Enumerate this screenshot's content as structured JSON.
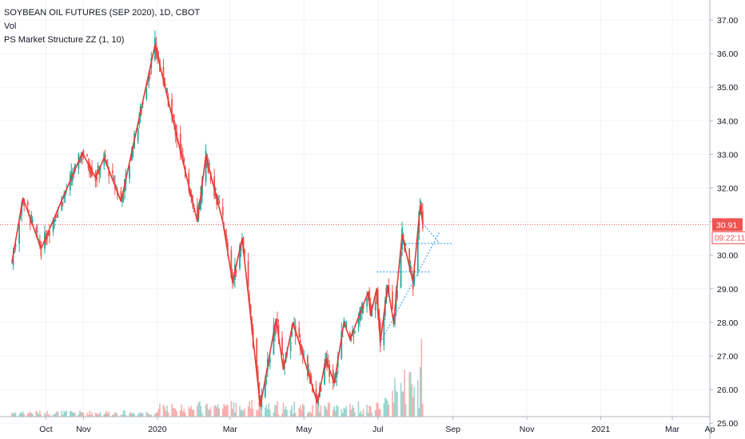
{
  "legend": {
    "symbol": "SOYBEAN OIL FUTURES (SEP 2020), 1D, CBOT",
    "vol": "Vol",
    "indicator": "PS Market Structure ZZ (1, 10)"
  },
  "colors": {
    "up": "#26a69a",
    "down": "#ef5350",
    "zigzag": "#e53935",
    "projection": "#2196f3",
    "grid": "#f0f3fa"
  },
  "chart_data": {
    "type": "candlestick",
    "x_ticks": [
      "Oct",
      "Nov",
      "2020",
      "Mar",
      "May",
      "Jul",
      "Sep",
      "Nov",
      "2021",
      "Mar",
      "Ap"
    ],
    "y_ticks": [
      "25.00",
      "26.00",
      "27.00",
      "28.00",
      "29.00",
      "30.00",
      "31.00",
      "32.00",
      "33.00",
      "34.00",
      "35.00",
      "36.00",
      "37.00"
    ],
    "ylim": [
      24.6,
      37.5
    ],
    "last_price": "30.91",
    "countdown": "09:22:11",
    "zigzag_pivots": [
      {
        "date": "2019-09-03",
        "price": 29.8
      },
      {
        "date": "2019-09-12",
        "price": 31.7
      },
      {
        "date": "2019-09-27",
        "price": 30.2
      },
      {
        "date": "2019-10-31",
        "price": 33.05
      },
      {
        "date": "2019-11-11",
        "price": 32.3
      },
      {
        "date": "2019-11-18",
        "price": 32.9
      },
      {
        "date": "2019-12-02",
        "price": 31.6
      },
      {
        "date": "2019-12-30",
        "price": 36.25
      },
      {
        "date": "2020-02-03",
        "price": 31.0
      },
      {
        "date": "2020-02-10",
        "price": 32.95
      },
      {
        "date": "2020-02-24",
        "price": 31.0
      },
      {
        "date": "2020-03-03",
        "price": 29.2
      },
      {
        "date": "2020-03-11",
        "price": 30.5
      },
      {
        "date": "2020-03-26",
        "price": 25.5
      },
      {
        "date": "2020-04-08",
        "price": 28.1
      },
      {
        "date": "2020-04-14",
        "price": 26.6
      },
      {
        "date": "2020-04-22",
        "price": 28.0
      },
      {
        "date": "2020-05-12",
        "price": 25.6
      },
      {
        "date": "2020-05-19",
        "price": 26.9
      },
      {
        "date": "2020-05-26",
        "price": 26.2
      },
      {
        "date": "2020-06-03",
        "price": 28.0
      },
      {
        "date": "2020-06-08",
        "price": 27.5
      },
      {
        "date": "2020-06-23",
        "price": 28.9
      },
      {
        "date": "2020-06-25",
        "price": 28.2
      },
      {
        "date": "2020-06-30",
        "price": 29.0
      },
      {
        "date": "2020-07-03",
        "price": 27.4
      },
      {
        "date": "2020-07-09",
        "price": 29.1
      },
      {
        "date": "2020-07-14",
        "price": 28.0
      },
      {
        "date": "2020-07-21",
        "price": 30.6
      },
      {
        "date": "2020-07-30",
        "price": 29.2
      },
      {
        "date": "2020-08-05",
        "price": 31.5
      },
      {
        "date": "2020-08-07",
        "price": 30.95
      }
    ],
    "candles": [
      {
        "date": "2019-09-03",
        "open": 30.0,
        "high": 30.2,
        "low": 29.7,
        "close": 29.9
      },
      {
        "date": "2019-09-12",
        "open": 31.0,
        "high": 31.8,
        "low": 30.9,
        "close": 31.6
      },
      {
        "date": "2019-09-27",
        "open": 30.5,
        "high": 30.6,
        "low": 30.1,
        "close": 30.3
      },
      {
        "date": "2019-10-31",
        "open": 32.4,
        "high": 33.1,
        "low": 32.3,
        "close": 33.0
      },
      {
        "date": "2019-12-30",
        "open": 35.6,
        "high": 36.3,
        "low": 35.4,
        "close": 36.1
      },
      {
        "date": "2020-03-26",
        "open": 26.0,
        "high": 26.2,
        "low": 25.4,
        "close": 25.6
      },
      {
        "date": "2020-05-12",
        "open": 26.1,
        "high": 26.3,
        "low": 25.5,
        "close": 25.7
      },
      {
        "date": "2020-07-21",
        "open": 30.0,
        "high": 30.7,
        "low": 29.9,
        "close": 30.5
      },
      {
        "date": "2020-08-05",
        "open": 30.9,
        "high": 31.7,
        "low": 30.8,
        "close": 31.4
      },
      {
        "date": "2020-08-07",
        "open": 31.1,
        "high": 31.3,
        "low": 30.8,
        "close": 30.91
      }
    ],
    "projection": {
      "upper_line": [
        {
          "date": "2020-08-07",
          "price": 30.95
        },
        {
          "date": "2020-08-21",
          "price": 30.35
        }
      ],
      "lower_line": [
        {
          "date": "2020-07-30",
          "price": 29.2
        },
        {
          "date": "2020-08-21",
          "price": 30.7
        }
      ],
      "trend_line": [
        {
          "date": "2020-07-03",
          "price": 27.4
        },
        {
          "date": "2020-07-30",
          "price": 29.2
        }
      ],
      "level_high": {
        "from": "2020-07-21",
        "to": "2020-08-31",
        "price": 30.35
      },
      "level_low": {
        "from": "2020-06-30",
        "to": "2020-08-13",
        "price": 29.5
      }
    }
  }
}
